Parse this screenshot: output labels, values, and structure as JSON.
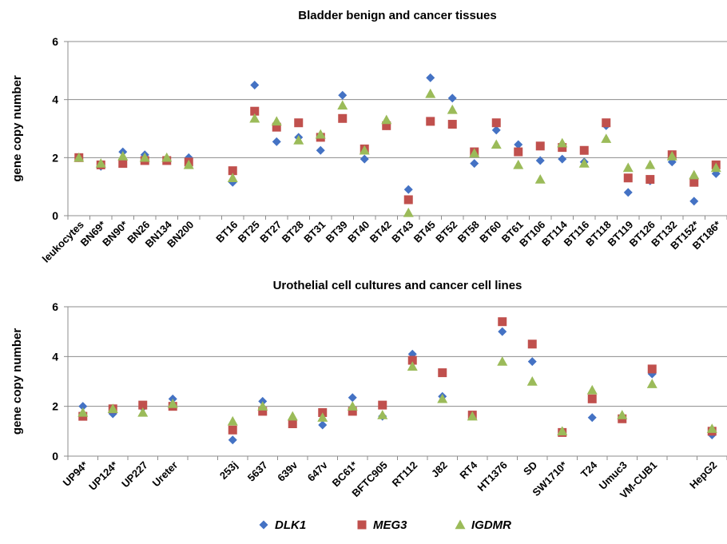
{
  "legend": [
    {
      "name": "DLK1",
      "color": "#4472C4",
      "marker": "diamond"
    },
    {
      "name": "MEG3",
      "color": "#C0504D",
      "marker": "square"
    },
    {
      "name": "IGDMR",
      "color": "#9BBB59",
      "marker": "triangle"
    }
  ],
  "chart_data": [
    {
      "type": "scatter",
      "title": "Bladder benign and cancer tissues",
      "xlabel": "",
      "ylabel": "gene copy number",
      "ylim": [
        0,
        6
      ],
      "yticks": [
        0,
        2,
        4,
        6
      ],
      "grid": true,
      "categories": [
        "leukocytes",
        "BN69*",
        "BN90*",
        "BN26",
        "BN134",
        "BN200",
        "",
        "BT16",
        "BT25",
        "BT27",
        "BT28",
        "BT31",
        "BT39",
        "BT40",
        "BT42",
        "BT43",
        "BT45",
        "BT52",
        "BT58",
        "BT60",
        "BT61",
        "BT106",
        "BT114",
        "BT116",
        "BT118",
        "BT119",
        "BT126",
        "BT132",
        "BT152*",
        "BT186*"
      ],
      "series": [
        {
          "name": "DLK1",
          "values": [
            2.0,
            1.7,
            2.2,
            2.1,
            1.9,
            2.0,
            null,
            1.15,
            4.5,
            2.55,
            2.7,
            2.25,
            4.15,
            1.95,
            3.1,
            0.9,
            4.75,
            4.05,
            1.8,
            2.95,
            2.45,
            1.9,
            1.95,
            1.85,
            3.1,
            0.8,
            1.2,
            1.85,
            0.5,
            1.45
          ]
        },
        {
          "name": "MEG3",
          "values": [
            2.0,
            1.75,
            1.8,
            1.9,
            1.9,
            1.85,
            null,
            1.55,
            3.6,
            3.05,
            3.2,
            2.7,
            3.35,
            2.3,
            3.1,
            0.55,
            3.25,
            3.15,
            2.2,
            3.2,
            2.2,
            2.4,
            2.35,
            2.25,
            3.2,
            1.3,
            1.25,
            2.1,
            1.15,
            1.75
          ]
        },
        {
          "name": "IGDMR",
          "values": [
            2.0,
            1.8,
            2.05,
            2.0,
            2.0,
            1.75,
            null,
            1.3,
            3.35,
            3.25,
            2.6,
            2.8,
            3.8,
            2.25,
            3.3,
            0.1,
            4.2,
            3.65,
            2.15,
            2.45,
            1.75,
            1.25,
            2.5,
            1.8,
            2.65,
            1.65,
            1.75,
            2.05,
            1.4,
            1.65
          ]
        }
      ]
    },
    {
      "type": "scatter",
      "title": "Urothelial cell cultures and cancer cell lines",
      "xlabel": "",
      "ylabel": "gene copy number",
      "ylim": [
        0,
        6
      ],
      "yticks": [
        0,
        2,
        4,
        6
      ],
      "grid": true,
      "categories": [
        "UP94*",
        "UP124*",
        "UP227",
        "Ureter",
        "",
        "253j",
        "5637",
        "639v",
        "647v",
        "BC61*",
        "BFTC905",
        "RT112",
        "J82",
        "RT4",
        "HT1376",
        "SD",
        "SW1710*",
        "T24",
        "Umuc3",
        "VM-CUB1",
        "",
        "HepG2"
      ],
      "series": [
        {
          "name": "DLK1",
          "values": [
            2.0,
            1.7,
            1.95,
            2.3,
            null,
            0.65,
            2.2,
            1.3,
            1.25,
            2.35,
            1.6,
            4.1,
            2.4,
            1.65,
            5.0,
            3.8,
            1.0,
            1.55,
            1.55,
            3.3,
            null,
            0.85
          ]
        },
        {
          "name": "MEG3",
          "values": [
            1.6,
            1.9,
            2.05,
            2.0,
            null,
            1.05,
            1.8,
            1.3,
            1.75,
            1.8,
            2.05,
            3.85,
            3.35,
            1.65,
            5.4,
            4.5,
            0.95,
            2.3,
            1.5,
            3.5,
            null,
            1.0
          ]
        },
        {
          "name": "IGDMR",
          "values": [
            1.75,
            1.9,
            1.75,
            2.1,
            null,
            1.4,
            2.0,
            1.6,
            1.55,
            2.0,
            1.65,
            3.6,
            2.3,
            1.6,
            3.8,
            3.0,
            1.0,
            2.65,
            1.65,
            2.9,
            null,
            1.1
          ]
        }
      ]
    }
  ]
}
